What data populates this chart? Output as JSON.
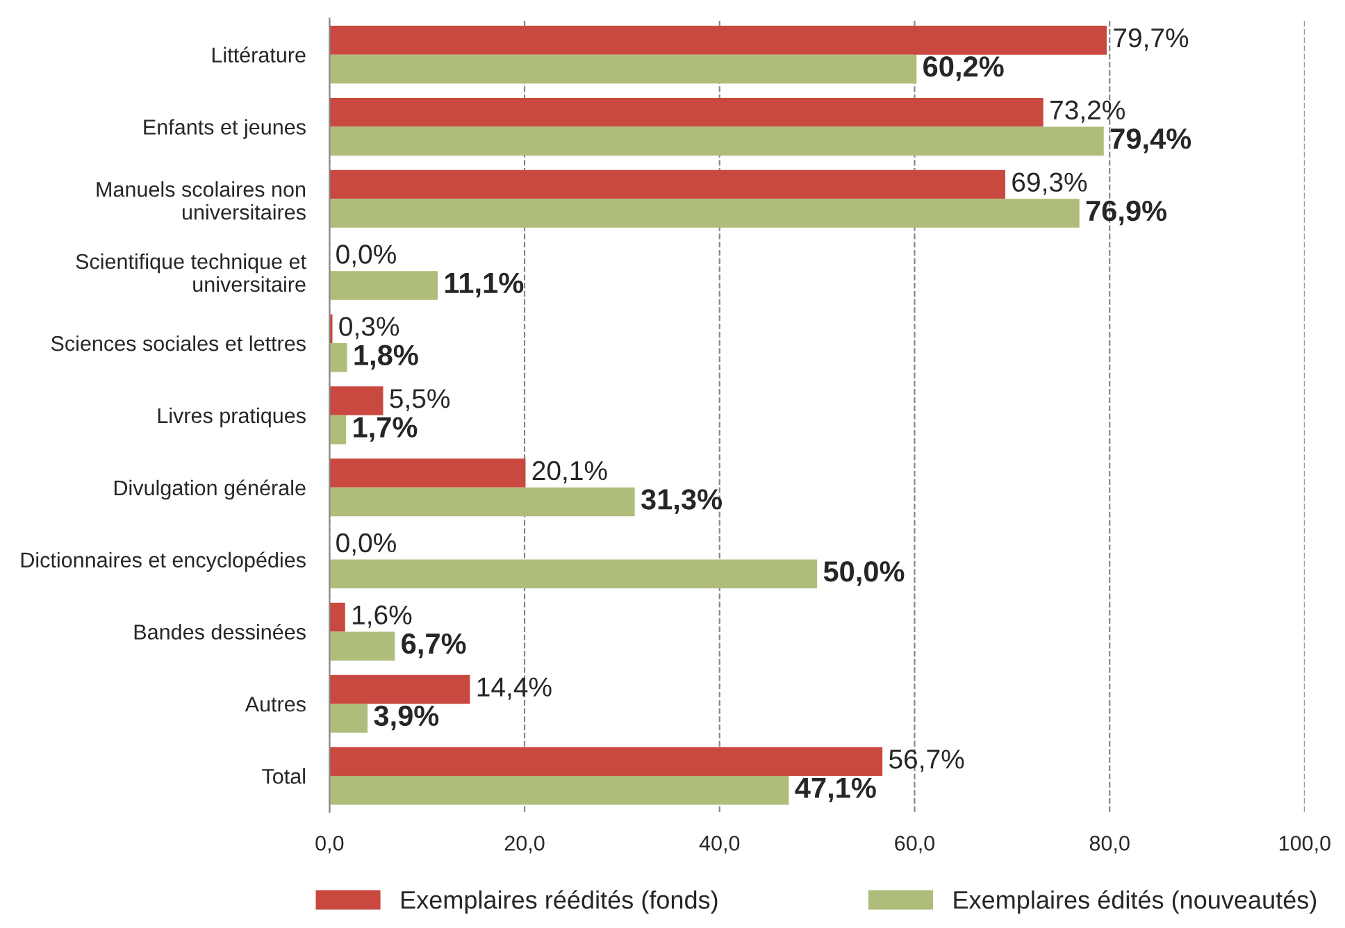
{
  "chart_data": {
    "type": "bar",
    "orientation": "horizontal",
    "categories": [
      "Littérature",
      "Enfants et jeunes",
      "Manuels scolaires non\nuniversitaires",
      "Scientifique technique et\nuniversitaire",
      "Sciences sociales et lettres",
      "Livres pratiques",
      "Divulgation générale",
      "Dictionnaires et encyclopédies",
      "Bandes dessinées",
      "Autres",
      "Total"
    ],
    "series": [
      {
        "name": "Exemplaires réédités (fonds)",
        "color": "#c9483f",
        "values": [
          79.7,
          73.2,
          69.3,
          0.0,
          0.3,
          5.5,
          20.1,
          0.0,
          1.6,
          14.4,
          56.7
        ],
        "value_labels": [
          "79,7%",
          "73,2%",
          "69,3%",
          "0,0%",
          "0,3%",
          "5,5%",
          "20,1%",
          "0,0%",
          "1,6%",
          "14,4%",
          "56,7%"
        ]
      },
      {
        "name": "Exemplaires édités (nouveautés)",
        "color": "#aebd7a",
        "values": [
          60.2,
          79.4,
          76.9,
          11.1,
          1.8,
          1.7,
          31.3,
          50.0,
          6.7,
          3.9,
          47.1
        ],
        "value_labels": [
          "60,2%",
          "79,4%",
          "76,9%",
          "11,1%",
          "1,8%",
          "1,7%",
          "31,3%",
          "50,0%",
          "6,7%",
          "3,9%",
          "47,1%"
        ]
      }
    ],
    "xlim": [
      0,
      100
    ],
    "xticks": [
      {
        "value": 0,
        "label": "0,0"
      },
      {
        "value": 20,
        "label": "20,0"
      },
      {
        "value": 40,
        "label": "40,0"
      },
      {
        "value": 60,
        "label": "60,0"
      },
      {
        "value": 80,
        "label": "80,0"
      },
      {
        "value": 100,
        "label": "100,0"
      }
    ],
    "grid": "x",
    "line_style": "dashed",
    "legend": "bottom"
  }
}
